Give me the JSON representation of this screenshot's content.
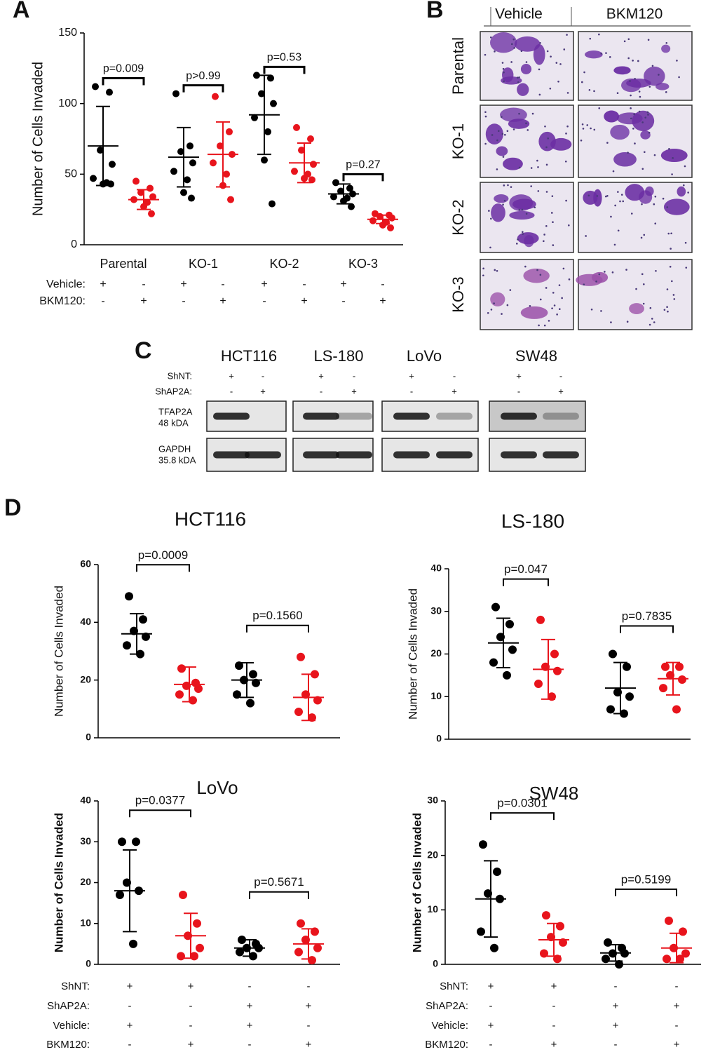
{
  "panel_labels": [
    "A",
    "B",
    "C",
    "D"
  ],
  "chart_data": [
    {
      "type": "dot",
      "ylabel": "Number of Cells Invaded",
      "ylim": [
        0,
        150
      ],
      "yticks": [
        0,
        50,
        100,
        150
      ],
      "groups": [
        "Parental",
        "KO-1",
        "KO-2",
        "KO-3"
      ],
      "p_values": [
        "p=0.009",
        "p>0.99",
        "p=0.53",
        "p=0.27"
      ],
      "conditions": [
        {
          "name": "Vehicle:",
          "signs": [
            "+",
            "-",
            "+",
            "-",
            "+",
            "-",
            "+",
            "-"
          ]
        },
        {
          "name": "BKM120:",
          "signs": [
            "-",
            "+",
            "-",
            "+",
            "-",
            "+",
            "-",
            "+"
          ]
        }
      ],
      "series": [
        {
          "color": "#000000",
          "values": [
            112,
            108,
            67,
            57,
            47,
            44,
            43,
            43
          ],
          "mean": 70,
          "sd": 28
        },
        {
          "color": "#e8141c",
          "values": [
            45,
            40,
            37,
            34,
            32,
            30,
            27,
            22
          ],
          "mean": 32,
          "sd": 7
        },
        {
          "color": "#000000",
          "values": [
            107,
            70,
            66,
            58,
            52,
            46,
            37,
            33
          ],
          "mean": 62,
          "sd": 21
        },
        {
          "color": "#e8141c",
          "values": [
            105,
            80,
            70,
            64,
            58,
            50,
            42,
            32
          ],
          "mean": 64,
          "sd": 23
        },
        {
          "color": "#000000",
          "values": [
            120,
            118,
            107,
            100,
            90,
            80,
            60,
            29
          ],
          "mean": 92,
          "sd": 28
        },
        {
          "color": "#e8141c",
          "values": [
            83,
            75,
            67,
            57,
            52,
            50,
            47,
            46
          ],
          "mean": 58,
          "sd": 14
        },
        {
          "color": "#000000",
          "values": [
            44,
            40,
            38,
            36,
            34,
            33,
            31,
            27
          ],
          "mean": 36,
          "sd": 7
        },
        {
          "color": "#e8141c",
          "values": [
            22,
            21,
            20,
            19,
            17,
            16,
            14,
            12
          ],
          "mean": 18,
          "sd": 3
        }
      ]
    },
    {
      "type": "dot",
      "title": "HCT116",
      "ylabel": "Number of Cells Invaded",
      "ylim": [
        0,
        60
      ],
      "yticks": [
        0,
        20,
        40,
        60
      ],
      "p_values": [
        "p=0.0009",
        "p=0.1560"
      ],
      "series": [
        {
          "color": "#000000",
          "values": [
            49,
            41,
            37,
            35,
            32,
            29
          ],
          "mean": 36,
          "sd": 7
        },
        {
          "color": "#e8141c",
          "values": [
            24,
            19,
            18,
            17,
            15,
            13
          ],
          "mean": 18.5,
          "sd": 6
        },
        {
          "color": "#000000",
          "values": [
            25,
            22,
            20,
            19,
            15,
            12
          ],
          "mean": 20,
          "sd": 6
        },
        {
          "color": "#e8141c",
          "values": [
            28,
            22,
            15,
            13,
            9,
            7
          ],
          "mean": 14,
          "sd": 8
        }
      ]
    },
    {
      "type": "dot",
      "title": "LS-180",
      "ylabel": "Number of Cells Invaded",
      "ylim": [
        0,
        40
      ],
      "yticks": [
        0,
        10,
        20,
        30,
        40
      ],
      "p_values": [
        "p=0.047",
        "p=0.7835"
      ],
      "series": [
        {
          "color": "#000000",
          "values": [
            31,
            27,
            24,
            21,
            18,
            15
          ],
          "mean": 22.6,
          "sd": 5.8
        },
        {
          "color": "#e8141c",
          "values": [
            28,
            20,
            17,
            16,
            13,
            10
          ],
          "mean": 16.4,
          "sd": 7
        },
        {
          "color": "#000000",
          "values": [
            20,
            17,
            11,
            10,
            7,
            6
          ],
          "mean": 12,
          "sd": 6
        },
        {
          "color": "#e8141c",
          "values": [
            17,
            17,
            15,
            14,
            12,
            7
          ],
          "mean": 14.2,
          "sd": 3.8
        }
      ]
    },
    {
      "type": "dot",
      "title": "LoVo",
      "ylabel": "Number of Cells Invaded",
      "ylim": [
        0,
        40
      ],
      "yticks": [
        0,
        10,
        20,
        30,
        40
      ],
      "p_values": [
        "p=0.0377",
        "p=0.5671"
      ],
      "conditions": [
        {
          "name": "ShNT:",
          "signs": [
            "+",
            "+",
            "-",
            "-"
          ]
        },
        {
          "name": "ShAP2A:",
          "signs": [
            "-",
            "-",
            "+",
            "+"
          ]
        },
        {
          "name": "Vehicle:",
          "signs": [
            "+",
            "-",
            "+",
            "-"
          ]
        },
        {
          "name": "BKM120:",
          "signs": [
            "-",
            "+",
            "-",
            "+"
          ]
        }
      ],
      "series": [
        {
          "color": "#000000",
          "values": [
            30,
            30,
            20,
            18,
            17,
            5
          ],
          "mean": 18,
          "sd": 10
        },
        {
          "color": "#e8141c",
          "values": [
            17,
            10,
            7,
            4,
            2,
            2
          ],
          "mean": 7,
          "sd": 5.5
        },
        {
          "color": "#000000",
          "values": [
            6,
            5,
            4,
            4,
            3,
            2
          ],
          "mean": 4,
          "sd": 2
        },
        {
          "color": "#e8141c",
          "values": [
            10,
            8,
            6,
            4,
            3,
            1
          ],
          "mean": 5,
          "sd": 3.7
        }
      ]
    },
    {
      "type": "dot",
      "title": "SW48",
      "ylabel": "Number of Cells Invaded",
      "ylim": [
        0,
        30
      ],
      "yticks": [
        0,
        10,
        20,
        30
      ],
      "p_values": [
        "p=0.0301",
        "p=0.5199"
      ],
      "conditions": [
        {
          "name": "ShNT:",
          "signs": [
            "+",
            "+",
            "-",
            "-"
          ]
        },
        {
          "name": "ShAP2A:",
          "signs": [
            "-",
            "-",
            "+",
            "+"
          ]
        },
        {
          "name": "Vehicle:",
          "signs": [
            "+",
            "-",
            "+",
            "-"
          ]
        },
        {
          "name": "BKM120:",
          "signs": [
            "-",
            "+",
            "-",
            "+"
          ]
        }
      ],
      "series": [
        {
          "color": "#000000",
          "values": [
            22,
            17,
            13,
            12,
            6,
            3
          ],
          "mean": 12,
          "sd": 7
        },
        {
          "color": "#e8141c",
          "values": [
            9,
            7,
            5,
            4,
            2,
            1
          ],
          "mean": 4.5,
          "sd": 3
        },
        {
          "color": "#000000",
          "values": [
            4,
            3,
            2,
            2,
            1,
            0
          ],
          "mean": 2.1,
          "sd": 1.5
        },
        {
          "color": "#e8141c",
          "values": [
            8,
            6,
            3,
            2,
            1,
            1
          ],
          "mean": 3,
          "sd": 2.7
        }
      ]
    }
  ],
  "micrographs": {
    "columns": [
      "Vehicle",
      "BKM120"
    ],
    "rows": [
      "Parental",
      "KO-1",
      "KO-2",
      "KO-3"
    ]
  },
  "blot": {
    "cell_lines": [
      "HCT116",
      "LS-180",
      "LoVo",
      "SW48"
    ],
    "conditions": [
      {
        "name": "ShNT:",
        "signs": [
          "+",
          "-",
          "+",
          "-",
          "+",
          "-",
          "+",
          "-"
        ]
      },
      {
        "name": "ShAP2A:",
        "signs": [
          "-",
          "+",
          "-",
          "+",
          "-",
          "+",
          "-",
          "+"
        ]
      }
    ],
    "proteins": [
      {
        "name": "TFAP2A",
        "size": "48 kDA"
      },
      {
        "name": "GAPDH",
        "size": "35.8 kDA"
      }
    ]
  }
}
